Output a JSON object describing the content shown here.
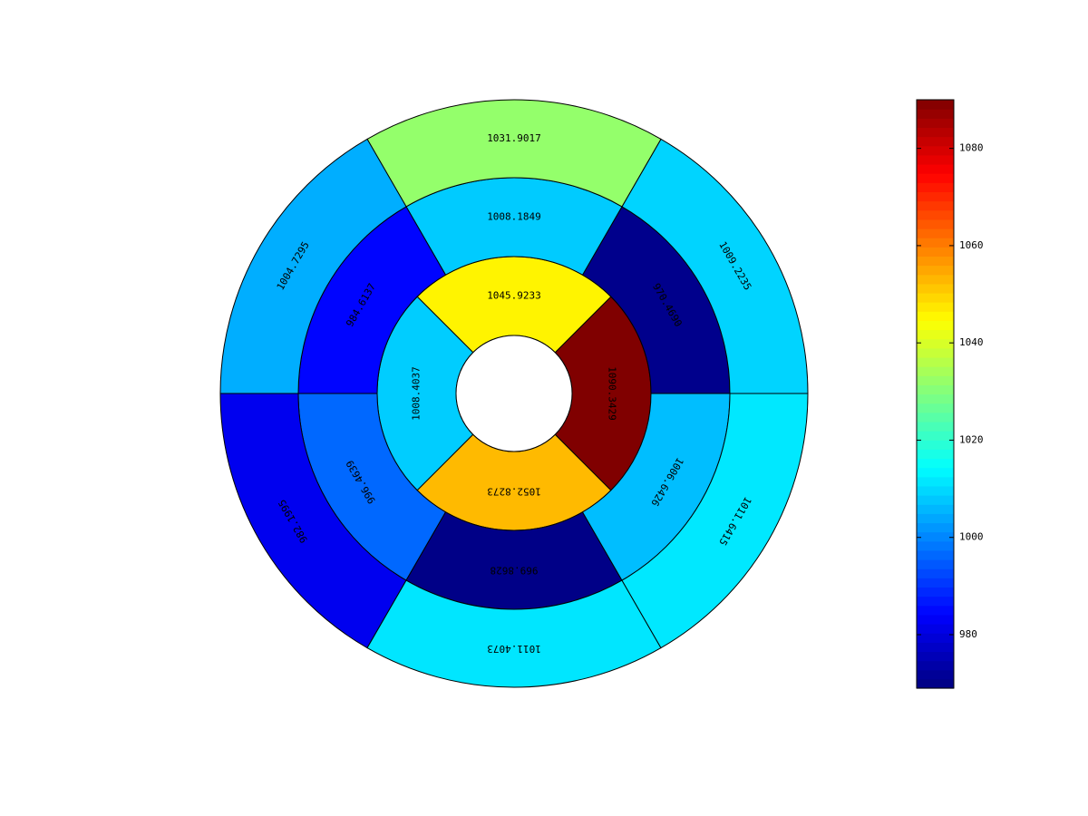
{
  "chart_data": {
    "type": "bullseye",
    "title": "",
    "colormap": "jet",
    "value_range": [
      969,
      1090
    ],
    "colorbar": {
      "ticks": [
        980,
        1000,
        1020,
        1040,
        1060,
        1080
      ],
      "tick_labels": [
        "980",
        "1000",
        "1020",
        "1040",
        "1060",
        "1080"
      ]
    },
    "rings": [
      {
        "name": "inner",
        "sector_start_deg": -45,
        "sector_span_deg": 90,
        "segments": [
          {
            "label": "1090.3429",
            "value": 1090.3429
          },
          {
            "label": "1045.9233",
            "value": 1045.9233
          },
          {
            "label": "1008.4037",
            "value": 1008.4037
          },
          {
            "label": "1052.8273",
            "value": 1052.8273
          }
        ]
      },
      {
        "name": "middle",
        "sector_start_deg": 0,
        "sector_span_deg": 60,
        "segments": [
          {
            "label": "970.4690",
            "value": 970.469
          },
          {
            "label": "1008.1849",
            "value": 1008.1849
          },
          {
            "label": "984.6137",
            "value": 984.6137
          },
          {
            "label": "996.4639",
            "value": 996.4639
          },
          {
            "label": "969.8628",
            "value": 969.8628
          },
          {
            "label": "1006.6426",
            "value": 1006.6426
          }
        ]
      },
      {
        "name": "outer",
        "sector_start_deg": 0,
        "sector_span_deg": 60,
        "segments": [
          {
            "label": "1009.2235",
            "value": 1009.2235
          },
          {
            "label": "1031.9017",
            "value": 1031.9017
          },
          {
            "label": "1004.7295",
            "value": 1004.7295
          },
          {
            "label": "982.1995",
            "value": 982.1995
          },
          {
            "label": "1011.4073",
            "value": 1011.4073
          },
          {
            "label": "1011.6415",
            "value": 1011.6415
          }
        ]
      }
    ]
  }
}
